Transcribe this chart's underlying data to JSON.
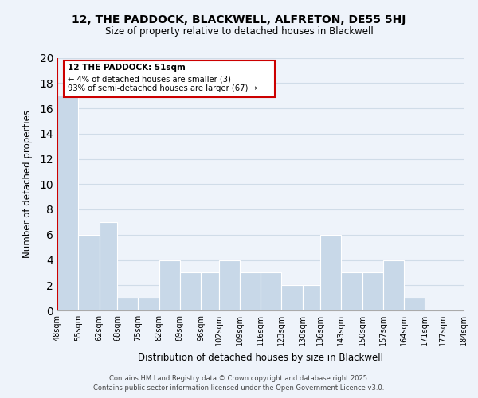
{
  "title": "12, THE PADDOCK, BLACKWELL, ALFRETON, DE55 5HJ",
  "subtitle": "Size of property relative to detached houses in Blackwell",
  "xlabel": "Distribution of detached houses by size in Blackwell",
  "ylabel": "Number of detached properties",
  "bar_left_edges": [
    48,
    55,
    62,
    68,
    75,
    82,
    89,
    96,
    102,
    109,
    116,
    123,
    130,
    136,
    143,
    150,
    157,
    164,
    171,
    177
  ],
  "bar_widths": [
    7,
    7,
    6,
    7,
    7,
    7,
    7,
    6,
    7,
    7,
    7,
    7,
    6,
    7,
    7,
    7,
    7,
    7,
    6,
    7
  ],
  "bar_heights": [
    17,
    6,
    7,
    1,
    1,
    4,
    3,
    3,
    4,
    3,
    3,
    2,
    2,
    6,
    3,
    3,
    4,
    1,
    0,
    0
  ],
  "bar_color": "#c8d8e8",
  "bar_edgecolor": "#ffffff",
  "grid_color": "#d0dce8",
  "background_color": "#eef3fa",
  "tick_labels": [
    "48sqm",
    "55sqm",
    "62sqm",
    "68sqm",
    "75sqm",
    "82sqm",
    "89sqm",
    "96sqm",
    "102sqm",
    "109sqm",
    "116sqm",
    "123sqm",
    "130sqm",
    "136sqm",
    "143sqm",
    "150sqm",
    "157sqm",
    "164sqm",
    "171sqm",
    "177sqm",
    "184sqm"
  ],
  "tick_positions": [
    48,
    55,
    62,
    68,
    75,
    82,
    89,
    96,
    102,
    109,
    116,
    123,
    130,
    136,
    143,
    150,
    157,
    164,
    171,
    177,
    184
  ],
  "ylim": [
    0,
    20
  ],
  "xlim": [
    48,
    184
  ],
  "red_line_x": 48,
  "annotation_title": "12 THE PADDOCK: 51sqm",
  "annotation_line1": "← 4% of detached houses are smaller (3)",
  "annotation_line2": "93% of semi-detached houses are larger (67) →",
  "annotation_box_color": "#ffffff",
  "annotation_box_edgecolor": "#cc0000",
  "red_line_color": "#cc0000",
  "footnote1": "Contains HM Land Registry data © Crown copyright and database right 2025.",
  "footnote2": "Contains public sector information licensed under the Open Government Licence v3.0."
}
